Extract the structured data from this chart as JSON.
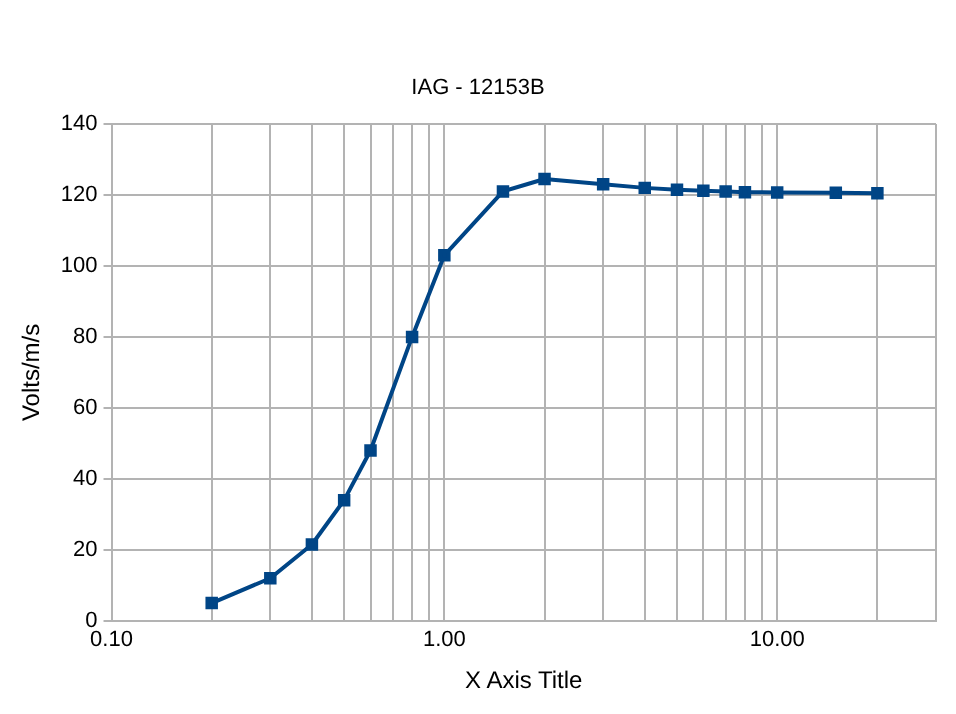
{
  "chart_data": {
    "type": "line",
    "subtitle": "IAG - 12153B",
    "xlabel": "X Axis Title",
    "ylabel": "Volts/m/s",
    "log": "x",
    "x": [
      0.2,
      0.3,
      0.4,
      0.5,
      0.6,
      0.8,
      1.0,
      1.5,
      2,
      3,
      4,
      5,
      6,
      7,
      8,
      10,
      15,
      20
    ],
    "series": [
      {
        "color": "#004586",
        "values": [
          5,
          12,
          21.5,
          34,
          48,
          80,
          103,
          121,
          124.5,
          123,
          122,
          121.5,
          121.2,
          121,
          120.8,
          120.7,
          120.6,
          120.5
        ]
      }
    ],
    "xlim": [
      0.1,
      30
    ],
    "xticks": [
      {
        "value": 0.1,
        "label": "0.10"
      },
      {
        "value": 1,
        "label": "1.00"
      },
      {
        "value": 10,
        "label": "10.00"
      }
    ],
    "ylim": [
      0,
      140
    ],
    "yticks": [
      0,
      20,
      40,
      60,
      80,
      100,
      120,
      140
    ],
    "grid": true,
    "marker": "square",
    "legend": false
  }
}
